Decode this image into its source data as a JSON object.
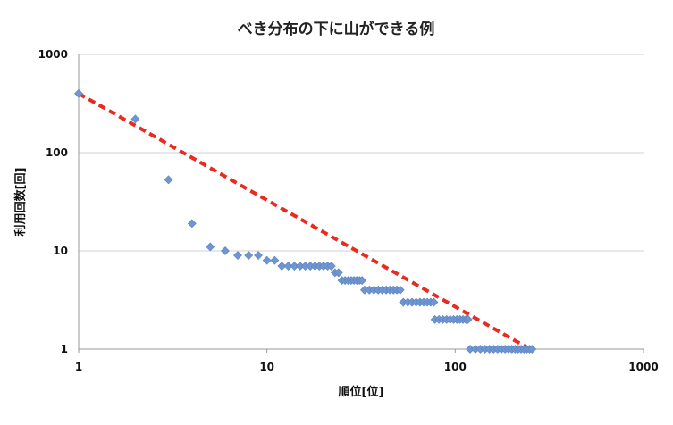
{
  "chart_data": {
    "type": "scatter",
    "title": "べき分布の下に山ができる例",
    "xlabel": "順位[位]",
    "ylabel": "利用回数[回]",
    "x_scale": "log",
    "y_scale": "log",
    "xlim": [
      1,
      1000
    ],
    "ylim": [
      1,
      1000
    ],
    "x_ticks": [
      "1",
      "10",
      "100",
      "1000"
    ],
    "y_ticks": [
      "1",
      "10",
      "100",
      "1000"
    ],
    "grid": true,
    "marker_color": "#6f96d1",
    "trend_color": "#e82a1f",
    "series": [
      {
        "marker": "diamond",
        "points": [
          [
            1,
            400
          ],
          [
            2,
            220
          ],
          [
            3,
            53
          ],
          [
            4,
            19
          ],
          [
            5,
            11
          ],
          [
            6,
            10
          ],
          [
            7,
            9
          ],
          [
            8,
            9
          ],
          [
            9,
            9
          ],
          [
            10,
            8
          ],
          [
            11,
            8
          ],
          [
            12,
            7
          ],
          [
            13,
            7
          ],
          [
            14,
            7
          ],
          [
            15,
            7
          ],
          [
            16,
            7
          ],
          [
            17,
            7
          ],
          [
            18,
            7
          ],
          [
            19,
            7
          ],
          [
            20,
            7
          ],
          [
            21,
            7
          ],
          [
            22,
            7
          ],
          [
            23,
            6
          ],
          [
            24,
            6
          ],
          [
            25,
            5
          ],
          [
            26,
            5
          ],
          [
            27,
            5
          ],
          [
            28,
            5
          ],
          [
            29,
            5
          ],
          [
            30,
            5
          ],
          [
            31,
            5
          ],
          [
            32,
            5
          ],
          [
            33,
            4
          ],
          [
            35,
            4
          ],
          [
            37,
            4
          ],
          [
            39,
            4
          ],
          [
            41,
            4
          ],
          [
            43,
            4
          ],
          [
            45,
            4
          ],
          [
            47,
            4
          ],
          [
            49,
            4
          ],
          [
            51,
            4
          ],
          [
            53,
            3
          ],
          [
            56,
            3
          ],
          [
            59,
            3
          ],
          [
            62,
            3
          ],
          [
            65,
            3
          ],
          [
            68,
            3
          ],
          [
            71,
            3
          ],
          [
            74,
            3
          ],
          [
            77,
            3
          ],
          [
            78,
            2
          ],
          [
            82,
            2
          ],
          [
            86,
            2
          ],
          [
            90,
            2
          ],
          [
            94,
            2
          ],
          [
            98,
            2
          ],
          [
            102,
            2
          ],
          [
            106,
            2
          ],
          [
            110,
            2
          ],
          [
            114,
            2
          ],
          [
            117,
            2
          ],
          [
            120,
            1
          ],
          [
            128,
            1
          ],
          [
            136,
            1
          ],
          [
            144,
            1
          ],
          [
            152,
            1
          ],
          [
            160,
            1
          ],
          [
            168,
            1
          ],
          [
            176,
            1
          ],
          [
            184,
            1
          ],
          [
            192,
            1
          ],
          [
            200,
            1
          ],
          [
            208,
            1
          ],
          [
            216,
            1
          ],
          [
            224,
            1
          ],
          [
            232,
            1
          ],
          [
            240,
            1
          ],
          [
            248,
            1
          ],
          [
            256,
            1
          ]
        ]
      }
    ],
    "trend_line": {
      "style": "dashed",
      "from": [
        1,
        400
      ],
      "to": [
        250,
        1
      ]
    }
  }
}
